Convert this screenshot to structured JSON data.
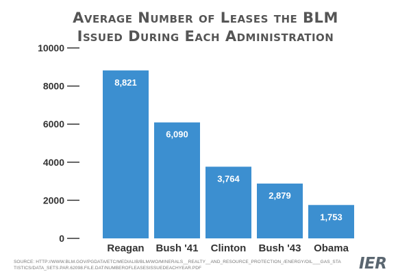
{
  "title_line1": "Average Number of Leases the BLM",
  "title_line2": "Issued During Each Administration",
  "source_text": "Source: http://www.blm.gov/pgdata/etc/medialib/blm/wo/MINERALS__REALTY__AND_RESOURCE_PROTECTION_/energy/oil___gas_statistics/data_sets.Par.62098.File.dat/numberofleasesissuedeachyear.pdf",
  "logo_text": "IER",
  "colors": {
    "bar": "#3c8fd0",
    "axis": "#333333",
    "title": "#555555",
    "bar_label": "#ffffff"
  },
  "chart_data": {
    "type": "bar",
    "title": "Average Number of Leases the BLM Issued During Each Administration",
    "xlabel": "",
    "ylabel": "",
    "categories": [
      "Reagan",
      "Bush '41",
      "Clinton",
      "Bush '43",
      "Obama"
    ],
    "values": [
      8821,
      6090,
      3764,
      2879,
      1753
    ],
    "value_labels": [
      "8,821",
      "6,090",
      "3,764",
      "2,879",
      "1,753"
    ],
    "ylim": [
      0,
      10000
    ],
    "yticks": [
      0,
      2000,
      4000,
      6000,
      8000,
      10000
    ],
    "ytick_labels": [
      "0",
      "2000",
      "4000",
      "6000",
      "8000",
      "10000"
    ],
    "grid": false,
    "legend": "none"
  }
}
